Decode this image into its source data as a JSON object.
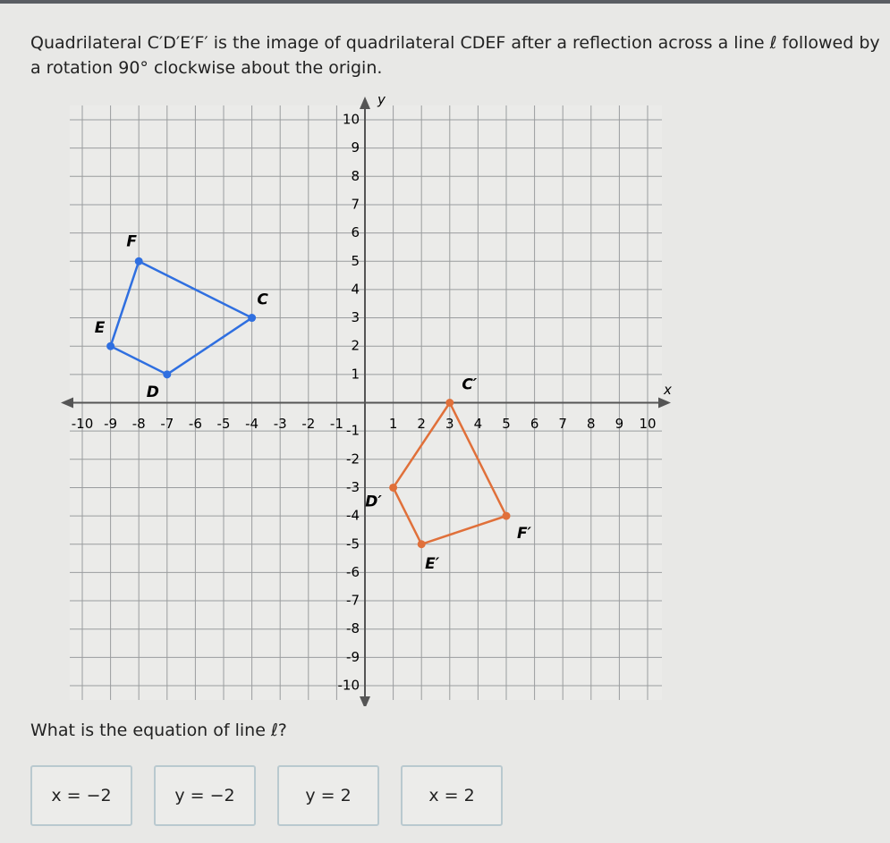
{
  "question": {
    "text": "Quadrilateral C′D′E′F′ is the image of quadrilateral CDEF after a reflection across a line ℓ followed by a rotation 90° clockwise about the origin."
  },
  "graph": {
    "x_axis_label": "x",
    "y_axis_label": "y",
    "xlim": [
      -10,
      10
    ],
    "ylim": [
      -10,
      10
    ],
    "xticks": [
      -10,
      -9,
      -8,
      -7,
      -6,
      -5,
      -4,
      -3,
      -2,
      -1,
      1,
      2,
      3,
      4,
      5,
      6,
      7,
      8,
      9,
      10
    ],
    "yticks": [
      -10,
      -9,
      -8,
      -7,
      -6,
      -5,
      -4,
      -3,
      -2,
      -1,
      1,
      2,
      3,
      4,
      5,
      6,
      7,
      8,
      9,
      10
    ],
    "polygons": [
      {
        "color": "#2f6fe0",
        "vertices": [
          {
            "label": "C",
            "x": -4,
            "y": 3
          },
          {
            "label": "D",
            "x": -7,
            "y": 1
          },
          {
            "label": "E",
            "x": -9,
            "y": 2
          },
          {
            "label": "F",
            "x": -8,
            "y": 5
          }
        ]
      },
      {
        "color": "#e0703a",
        "vertices": [
          {
            "label": "C′",
            "x": 3,
            "y": 0
          },
          {
            "label": "D′",
            "x": 1,
            "y": -3
          },
          {
            "label": "E′",
            "x": 2,
            "y": -5
          },
          {
            "label": "F′",
            "x": 5,
            "y": -4
          }
        ]
      }
    ]
  },
  "prompt": "What is the equation of line ℓ?",
  "choices": [
    "x = −2",
    "y = −2",
    "y = 2",
    "x = 2"
  ]
}
